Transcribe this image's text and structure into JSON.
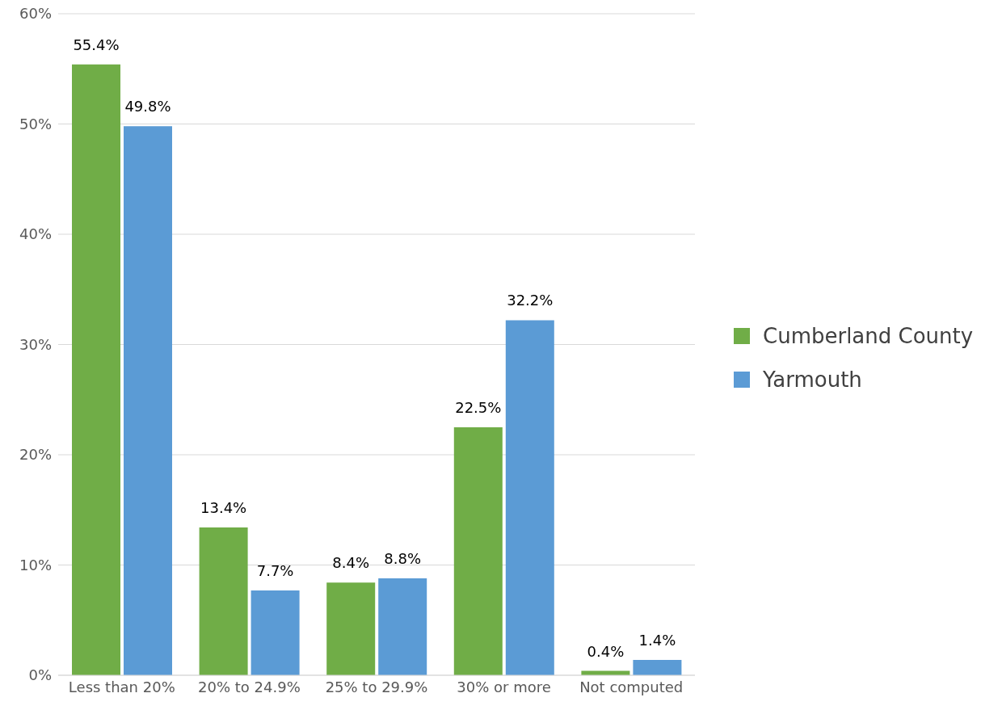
{
  "chart_data": {
    "type": "bar",
    "categories": [
      "Less than 20%",
      "20% to 24.9%",
      "25% to 29.9%",
      "30% or more",
      "Not computed"
    ],
    "series": [
      {
        "name": "Cumberland County",
        "color": "#70ad47",
        "values": [
          55.4,
          13.4,
          8.4,
          22.5,
          0.4
        ],
        "value_labels": [
          "55.4%",
          "13.4%",
          "8.4%",
          "22.5%",
          "0.4%"
        ]
      },
      {
        "name": "Yarmouth",
        "color": "#5b9bd5",
        "values": [
          49.8,
          7.7,
          8.8,
          32.2,
          1.4
        ],
        "value_labels": [
          "49.8%",
          "7.7%",
          "8.8%",
          "32.2%",
          "1.4%"
        ]
      }
    ],
    "ylim": [
      0,
      60
    ],
    "yticks": [
      {
        "value": 0,
        "label": "0%"
      },
      {
        "value": 10,
        "label": "10%"
      },
      {
        "value": 20,
        "label": "20%"
      },
      {
        "value": 30,
        "label": "30%"
      },
      {
        "value": 40,
        "label": "40%"
      },
      {
        "value": 50,
        "label": "50%"
      },
      {
        "value": 60,
        "label": "60%"
      }
    ],
    "grid": "y",
    "legend": "right"
  }
}
